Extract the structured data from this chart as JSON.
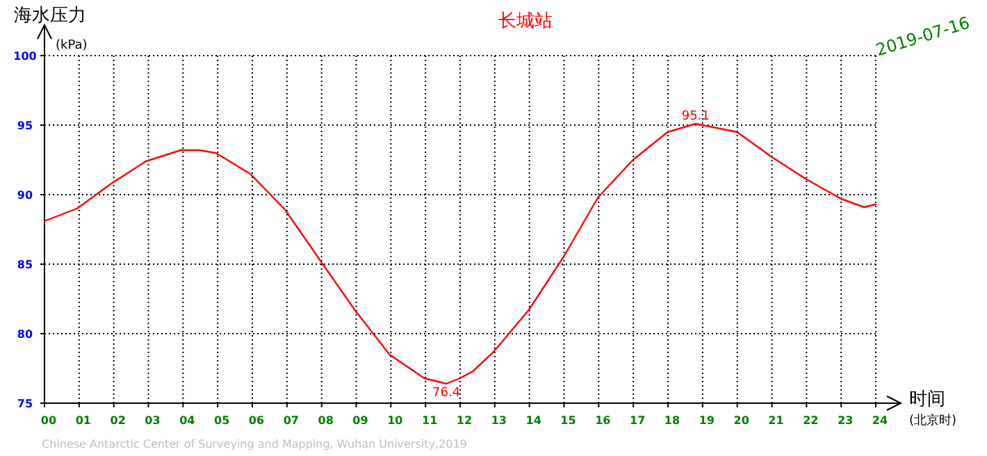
{
  "chart_data": {
    "type": "line",
    "title": "长城站",
    "ylabel": "海水压力",
    "xlabel": "时间",
    "annotations": [
      "(kPa)",
      "(北京时)",
      "2019-07-16",
      "Chinese Antarctic Center of Surveying and Mapping, Wuhan University,2019",
      {
        "text": "95.1",
        "x": 18.8,
        "y": 95.1
      },
      {
        "text": "76.4",
        "x": 11.6,
        "y": 76.4
      }
    ],
    "series": [
      {
        "color": "#ff0000",
        "x": [
          0,
          0.94,
          1.93,
          2.93,
          3.94,
          4.46,
          4.94,
          5.94,
          6.95,
          7.95,
          8.96,
          9.96,
          10.96,
          11.6,
          12.0,
          12.37,
          12.97,
          13.98,
          14.98,
          15.98,
          16.99,
          17.99,
          18.8,
          19.0,
          20.0,
          21.0,
          22.0,
          23.0,
          23.66,
          24
        ],
        "values": [
          88.1,
          89.0,
          90.8,
          92.4,
          93.2,
          93.2,
          93.0,
          91.5,
          88.9,
          85.3,
          81.7,
          78.5,
          76.8,
          76.4,
          76.8,
          77.3,
          78.7,
          81.7,
          85.5,
          89.8,
          92.5,
          94.5,
          95.1,
          95.0,
          94.5,
          92.7,
          91.1,
          89.7,
          89.1,
          89.3
        ]
      }
    ],
    "xlim": [
      0,
      24
    ],
    "ylim": [
      75,
      100
    ],
    "xticks": [
      {
        "value": 0,
        "label": "00"
      },
      {
        "value": 1,
        "label": "01"
      },
      {
        "value": 2,
        "label": "02"
      },
      {
        "value": 3,
        "label": "03"
      },
      {
        "value": 4,
        "label": "04"
      },
      {
        "value": 5,
        "label": "05"
      },
      {
        "value": 6,
        "label": "06"
      },
      {
        "value": 7,
        "label": "07"
      },
      {
        "value": 8,
        "label": "08"
      },
      {
        "value": 9,
        "label": "09"
      },
      {
        "value": 10,
        "label": "10"
      },
      {
        "value": 11,
        "label": "11"
      },
      {
        "value": 12,
        "label": "12"
      },
      {
        "value": 13,
        "label": "13"
      },
      {
        "value": 14,
        "label": "14"
      },
      {
        "value": 15,
        "label": "15"
      },
      {
        "value": 16,
        "label": "16"
      },
      {
        "value": 17,
        "label": "17"
      },
      {
        "value": 18,
        "label": "18"
      },
      {
        "value": 19,
        "label": "19"
      },
      {
        "value": 20,
        "label": "20"
      },
      {
        "value": 21,
        "label": "21"
      },
      {
        "value": 22,
        "label": "22"
      },
      {
        "value": 23,
        "label": "23"
      },
      {
        "value": 24,
        "label": "24"
      }
    ],
    "yticks": [
      75,
      80,
      85,
      90,
      95,
      100
    ],
    "grid": true,
    "marker": "none",
    "line_style": "solid"
  }
}
